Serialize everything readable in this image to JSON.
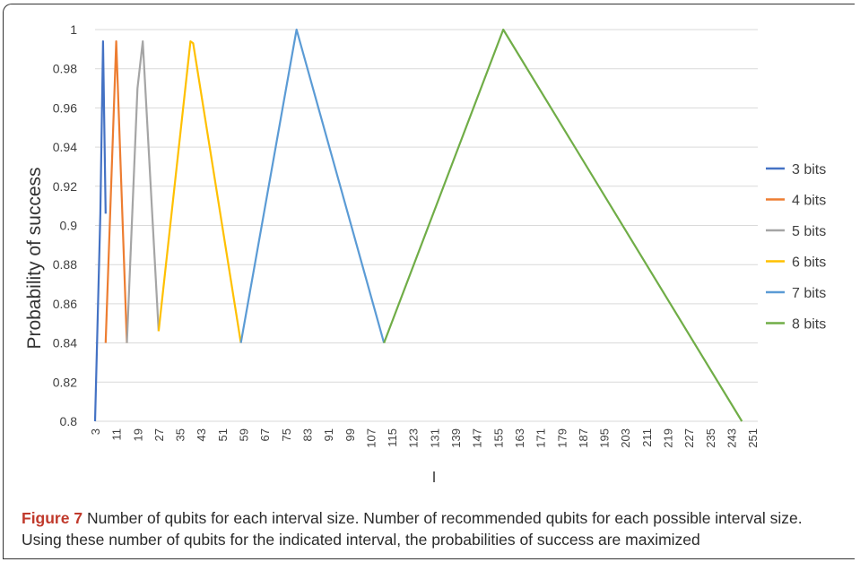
{
  "chart_data": {
    "type": "line",
    "ylabel": "Probability of success",
    "xlabel": "l",
    "ylim": [
      0.8,
      1.0
    ],
    "xlim": [
      3,
      253
    ],
    "y_ticks": [
      "0.8",
      "0.82",
      "0.84",
      "0.86",
      "0.88",
      "0.9",
      "0.92",
      "0.94",
      "0.96",
      "0.98",
      "1"
    ],
    "x_ticks": [
      "3",
      "11",
      "19",
      "27",
      "35",
      "43",
      "51",
      "59",
      "67",
      "75",
      "83",
      "91",
      "99",
      "107",
      "115",
      "123",
      "131",
      "139",
      "147",
      "155",
      "163",
      "171",
      "179",
      "187",
      "195",
      "203",
      "211",
      "219",
      "227",
      "235",
      "243",
      "251"
    ],
    "grid": "horizontal",
    "legend_position": "right",
    "series": [
      {
        "name": "3 bits",
        "color": "#4472c4",
        "x": [
          3,
          5,
          6,
          7
        ],
        "y": [
          0.8,
          0.906,
          0.994,
          0.906
        ]
      },
      {
        "name": "4 bits",
        "color": "#ed7d31",
        "x": [
          7,
          11,
          15
        ],
        "y": [
          0.84,
          0.994,
          0.84
        ]
      },
      {
        "name": "5 bits",
        "color": "#a5a5a5",
        "x": [
          15,
          19,
          21,
          27
        ],
        "y": [
          0.84,
          0.97,
          0.994,
          0.846
        ]
      },
      {
        "name": "6 bits",
        "color": "#ffc000",
        "x": [
          27,
          39,
          40,
          58
        ],
        "y": [
          0.846,
          0.994,
          0.993,
          0.84
        ]
      },
      {
        "name": "7 bits",
        "color": "#5b9bd5",
        "x": [
          58,
          79,
          112
        ],
        "y": [
          0.84,
          1.0,
          0.84
        ]
      },
      {
        "name": "8 bits",
        "color": "#70ad47",
        "x": [
          112,
          157,
          247
        ],
        "y": [
          0.84,
          1.0,
          0.8
        ]
      }
    ]
  },
  "caption": {
    "label": "Figure 7",
    "text": "Number of qubits for each interval size. Number of recommended qubits for each possible interval size. Using these number of qubits for the indicated interval, the probabilities of success are maximized"
  }
}
